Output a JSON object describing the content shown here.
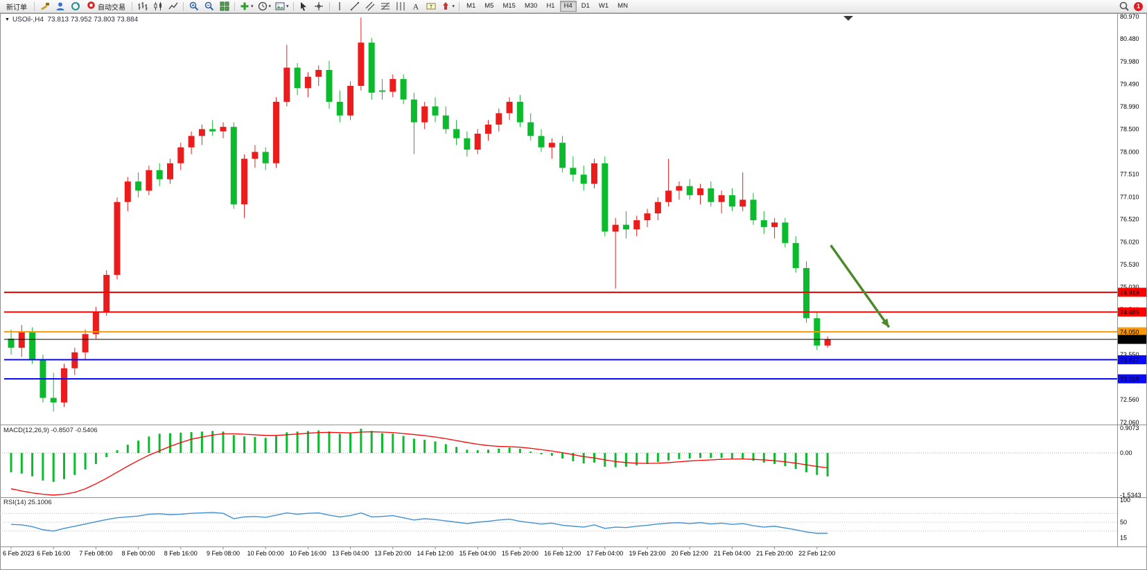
{
  "toolbar": {
    "new_order": "新订单",
    "autotrading": "自动交易",
    "timeframes": [
      "M1",
      "M5",
      "M15",
      "M30",
      "H1",
      "H4",
      "D1",
      "W1",
      "MN"
    ],
    "active_timeframe": "H4",
    "badge_count": "1",
    "icons": [
      "tools-icon",
      "profile-icon",
      "refresh-icon",
      "autotrading-icon",
      "bar-chart-icon",
      "candlestick-chart-icon",
      "line-chart-icon",
      "zoom-in-icon",
      "zoom-out-icon",
      "tile-windows-icon",
      "add-indicator-icon",
      "periods-icon",
      "templates-icon",
      "cursor-icon",
      "crosshair-icon",
      "vertical-line-icon",
      "trendline-icon",
      "equidistant-channel-icon",
      "fibonacci-icon",
      "cycle-lines-icon",
      "text-icon",
      "label-icon",
      "arrows-icon",
      "search-icon"
    ]
  },
  "chart": {
    "symbol_header": "USOil-,H4  73.813 73.952 73.803 73.884",
    "macd_header": "MACD(12,26,9) -0.8507 -0.5406",
    "rsi_header": "RSI(14) 25.1006"
  },
  "chart_data": {
    "type": "candlestick",
    "symbol": "USOil-",
    "timeframe": "H4",
    "ohlc": {
      "open": "73.813",
      "high": "73.952",
      "low": "73.803",
      "close": "73.884"
    },
    "colors": {
      "up": "#ea1c1c",
      "down": "#0bbb2d",
      "macd_hist": "#0bbb2d",
      "macd_signal": "#ff0000",
      "rsi_line": "#3f8fd6",
      "level_red": "#ff0000",
      "level_orange": "#ff9800",
      "level_blue": "#0a0aff",
      "current": "#000000",
      "arrow": "#4a8a2a"
    },
    "y_axis_labels": [
      "80.970",
      "80.480",
      "79.980",
      "79.490",
      "78.990",
      "78.500",
      "78.000",
      "77.510",
      "77.010",
      "76.520",
      "76.020",
      "75.530",
      "75.030",
      "74.540",
      "74.050",
      "73.550",
      "73.060",
      "72.560",
      "72.060"
    ],
    "x_axis_labels": [
      "6 Feb 2023",
      "6 Feb 16:00",
      "7 Feb 08:00",
      "8 Feb 00:00",
      "8 Feb 16:00",
      "9 Feb 08:00",
      "10 Feb 00:00",
      "10 Feb 16:00",
      "13 Feb 04:00",
      "13 Feb 20:00",
      "14 Feb 12:00",
      "15 Feb 04:00",
      "15 Feb 20:00",
      "16 Feb 12:00",
      "17 Feb 04:00",
      "19 Feb 23:00",
      "20 Feb 12:00",
      "21 Feb 04:00",
      "21 Feb 20:00",
      "22 Feb 12:00"
    ],
    "candles": [
      [
        73.9,
        74.1,
        73.55,
        73.7
      ],
      [
        73.7,
        74.2,
        73.5,
        74.05
      ],
      [
        74.05,
        74.15,
        73.35,
        73.45
      ],
      [
        73.45,
        73.55,
        72.5,
        72.6
      ],
      [
        72.6,
        73.15,
        72.3,
        72.5
      ],
      [
        72.5,
        73.35,
        72.4,
        73.25
      ],
      [
        73.25,
        73.7,
        73.1,
        73.6
      ],
      [
        73.6,
        74.1,
        73.45,
        74.0
      ],
      [
        74.0,
        74.6,
        73.9,
        74.5
      ],
      [
        74.5,
        75.4,
        74.4,
        75.3
      ],
      [
        75.3,
        77.0,
        75.2,
        76.9
      ],
      [
        76.9,
        77.45,
        76.7,
        77.35
      ],
      [
        77.35,
        77.55,
        77.0,
        77.15
      ],
      [
        77.15,
        77.7,
        77.05,
        77.6
      ],
      [
        77.6,
        77.75,
        77.25,
        77.4
      ],
      [
        77.4,
        77.85,
        77.3,
        77.75
      ],
      [
        77.75,
        78.2,
        77.6,
        78.1
      ],
      [
        78.1,
        78.45,
        77.95,
        78.35
      ],
      [
        78.35,
        78.6,
        78.15,
        78.5
      ],
      [
        78.5,
        78.7,
        78.35,
        78.45
      ],
      [
        78.45,
        78.65,
        78.3,
        78.55
      ],
      [
        78.55,
        78.65,
        76.75,
        76.85
      ],
      [
        76.85,
        77.95,
        76.55,
        77.85
      ],
      [
        77.85,
        78.15,
        77.65,
        78.0
      ],
      [
        78.0,
        78.1,
        77.6,
        77.75
      ],
      [
        77.75,
        79.2,
        77.65,
        79.1
      ],
      [
        79.1,
        80.35,
        79.0,
        79.85
      ],
      [
        79.85,
        79.95,
        79.25,
        79.4
      ],
      [
        79.4,
        79.75,
        79.2,
        79.65
      ],
      [
        79.65,
        79.9,
        79.45,
        79.8
      ],
      [
        79.8,
        80.0,
        78.95,
        79.1
      ],
      [
        79.1,
        79.35,
        78.65,
        78.8
      ],
      [
        78.8,
        79.55,
        78.7,
        79.45
      ],
      [
        79.45,
        80.95,
        79.35,
        80.4
      ],
      [
        80.4,
        80.5,
        79.15,
        79.3
      ],
      [
        79.35,
        79.6,
        79.15,
        79.32
      ],
      [
        79.32,
        79.7,
        79.2,
        79.6
      ],
      [
        79.6,
        79.7,
        79.05,
        79.15
      ],
      [
        79.15,
        79.3,
        77.95,
        78.65
      ],
      [
        78.65,
        79.1,
        78.5,
        79.0
      ],
      [
        79.0,
        79.2,
        78.65,
        78.8
      ],
      [
        78.8,
        79.0,
        78.4,
        78.5
      ],
      [
        78.5,
        78.7,
        78.15,
        78.3
      ],
      [
        78.3,
        78.45,
        77.9,
        78.05
      ],
      [
        78.05,
        78.5,
        77.95,
        78.4
      ],
      [
        78.4,
        78.7,
        78.25,
        78.6
      ],
      [
        78.6,
        78.95,
        78.45,
        78.85
      ],
      [
        78.85,
        79.2,
        78.7,
        79.1
      ],
      [
        79.1,
        79.25,
        78.55,
        78.65
      ],
      [
        78.65,
        78.85,
        78.25,
        78.35
      ],
      [
        78.35,
        78.5,
        78.0,
        78.1
      ],
      [
        78.1,
        78.3,
        77.85,
        78.2
      ],
      [
        78.2,
        78.35,
        77.55,
        77.65
      ],
      [
        77.65,
        77.9,
        77.35,
        77.5
      ],
      [
        77.5,
        77.7,
        77.15,
        77.3
      ],
      [
        77.3,
        77.85,
        77.2,
        77.75
      ],
      [
        77.75,
        77.9,
        76.15,
        76.25
      ],
      [
        76.25,
        76.55,
        75.0,
        76.4
      ],
      [
        76.4,
        76.7,
        76.1,
        76.3
      ],
      [
        76.3,
        76.6,
        76.15,
        76.5
      ],
      [
        76.5,
        76.75,
        76.35,
        76.65
      ],
      [
        76.65,
        77.0,
        76.5,
        76.9
      ],
      [
        76.9,
        77.85,
        76.8,
        77.15
      ],
      [
        77.15,
        77.35,
        76.95,
        77.25
      ],
      [
        77.25,
        77.4,
        76.95,
        77.05
      ],
      [
        77.05,
        77.3,
        76.85,
        77.2
      ],
      [
        77.2,
        77.35,
        76.8,
        76.9
      ],
      [
        76.9,
        77.15,
        76.65,
        77.05
      ],
      [
        77.05,
        77.2,
        76.7,
        76.8
      ],
      [
        76.8,
        77.55,
        76.7,
        76.95
      ],
      [
        76.95,
        77.1,
        76.4,
        76.5
      ],
      [
        76.5,
        76.7,
        76.2,
        76.35
      ],
      [
        76.35,
        76.55,
        76.1,
        76.45
      ],
      [
        76.45,
        76.55,
        75.9,
        76.0
      ],
      [
        76.0,
        76.15,
        75.35,
        75.45
      ],
      [
        75.45,
        75.6,
        74.25,
        74.35
      ],
      [
        74.35,
        74.5,
        73.65,
        73.75
      ],
      [
        73.75,
        73.95,
        73.7,
        73.88
      ]
    ],
    "levels": [
      {
        "price": 74.919,
        "label": "74.919",
        "color": "#ff0000"
      },
      {
        "price": 74.485,
        "label": "74.485",
        "color": "#ff0000"
      },
      {
        "price": 74.05,
        "label": "74.050",
        "color": "#ff9800"
      },
      {
        "price": 73.437,
        "label": "73.437",
        "color": "#0a0aff"
      },
      {
        "price": 73.018,
        "label": "73.018",
        "color": "#0a0aff"
      }
    ],
    "current_price": {
      "price": 73.884,
      "label": "73.884",
      "color": "#000000"
    },
    "annotation_arrow": {
      "from": {
        "bar": 77.3,
        "price": 75.95
      },
      "to": {
        "bar": 82.8,
        "price": 74.15
      }
    },
    "macd": {
      "histogram": [
        -0.7,
        -0.75,
        -0.85,
        -1.0,
        -1.05,
        -0.95,
        -0.8,
        -0.6,
        -0.4,
        -0.15,
        0.1,
        0.3,
        0.45,
        0.6,
        0.7,
        0.72,
        0.74,
        0.76,
        0.78,
        0.8,
        0.78,
        0.65,
        0.6,
        0.58,
        0.55,
        0.62,
        0.75,
        0.78,
        0.8,
        0.82,
        0.78,
        0.7,
        0.72,
        0.88,
        0.8,
        0.72,
        0.7,
        0.62,
        0.52,
        0.48,
        0.42,
        0.32,
        0.22,
        0.12,
        0.1,
        0.12,
        0.16,
        0.2,
        0.15,
        0.05,
        -0.05,
        -0.1,
        -0.2,
        -0.3,
        -0.38,
        -0.35,
        -0.5,
        -0.52,
        -0.5,
        -0.45,
        -0.4,
        -0.33,
        -0.27,
        -0.22,
        -0.2,
        -0.18,
        -0.18,
        -0.18,
        -0.2,
        -0.22,
        -0.28,
        -0.35,
        -0.4,
        -0.48,
        -0.58,
        -0.7,
        -0.8,
        -0.85
      ],
      "signal": [
        -1.3,
        -1.38,
        -1.45,
        -1.5,
        -1.53,
        -1.5,
        -1.43,
        -1.3,
        -1.12,
        -0.92,
        -0.7,
        -0.48,
        -0.27,
        -0.08,
        0.08,
        0.24,
        0.38,
        0.5,
        0.58,
        0.65,
        0.7,
        0.7,
        0.68,
        0.66,
        0.64,
        0.64,
        0.66,
        0.69,
        0.72,
        0.74,
        0.75,
        0.74,
        0.73,
        0.76,
        0.77,
        0.76,
        0.74,
        0.71,
        0.67,
        0.63,
        0.58,
        0.52,
        0.45,
        0.38,
        0.32,
        0.27,
        0.24,
        0.23,
        0.21,
        0.17,
        0.12,
        0.07,
        0.01,
        -0.06,
        -0.13,
        -0.18,
        -0.25,
        -0.31,
        -0.35,
        -0.37,
        -0.38,
        -0.37,
        -0.35,
        -0.32,
        -0.29,
        -0.27,
        -0.25,
        -0.23,
        -0.22,
        -0.22,
        -0.23,
        -0.25,
        -0.28,
        -0.32,
        -0.37,
        -0.43,
        -0.49,
        -0.54
      ],
      "scale": {
        "max": 0.9073,
        "min": -1.5343,
        "labels": [
          "0.9073",
          "0.00",
          "-1.5343"
        ]
      }
    },
    "rsi": {
      "values": [
        45,
        44,
        40,
        33,
        30,
        36,
        41,
        46,
        51,
        56,
        60,
        62,
        64,
        68,
        69,
        67,
        68,
        70,
        71,
        72,
        70,
        58,
        62,
        63,
        61,
        66,
        71,
        68,
        70,
        71,
        66,
        62,
        65,
        71,
        62,
        63,
        65,
        60,
        55,
        58,
        56,
        53,
        50,
        47,
        50,
        52,
        55,
        57,
        52,
        49,
        46,
        48,
        43,
        41,
        39,
        44,
        36,
        39,
        38,
        41,
        43,
        46,
        48,
        49,
        47,
        49,
        46,
        48,
        45,
        47,
        42,
        39,
        41,
        37,
        33,
        28,
        25,
        25
      ],
      "scale_labels": [
        {
          "text": "100",
          "value": 100
        },
        {
          "text": "50",
          "value": 50
        },
        {
          "text": "15",
          "value": 15
        }
      ],
      "level_lines": [
        70,
        50,
        30
      ]
    }
  }
}
